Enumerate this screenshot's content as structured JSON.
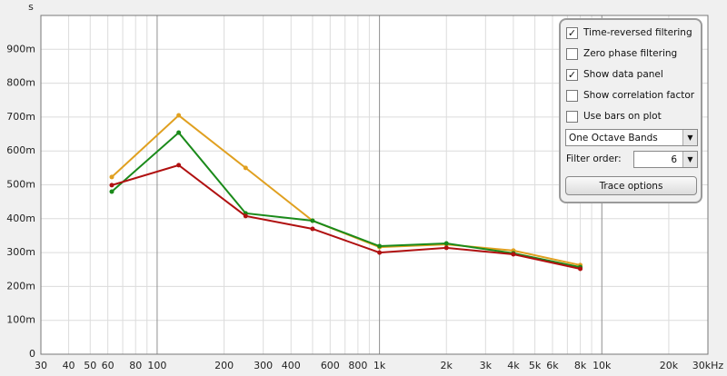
{
  "chart_data": {
    "type": "line",
    "y_label": "s",
    "x": [
      62.5,
      125,
      250,
      500,
      1000,
      2000,
      4000,
      8000
    ],
    "series": [
      {
        "color": "#e0a020",
        "values": [
          0.523,
          0.705,
          0.55,
          0.394,
          0.316,
          0.324,
          0.306,
          0.263
        ]
      },
      {
        "color": "#1a8a1a",
        "values": [
          0.48,
          0.654,
          0.416,
          0.394,
          0.319,
          0.327,
          0.298,
          0.257
        ]
      },
      {
        "color": "#b01010",
        "values": [
          0.499,
          0.558,
          0.408,
          0.37,
          0.3,
          0.314,
          0.295,
          0.252
        ]
      }
    ],
    "xlim": [
      30,
      30000
    ],
    "xscale": "log",
    "xticks": [
      30,
      40,
      50,
      60,
      80,
      100,
      200,
      300,
      400,
      600,
      800,
      {
        "value": 1000,
        "label": "1k"
      },
      {
        "value": 2000,
        "label": "2k"
      },
      {
        "value": 3000,
        "label": "3k"
      },
      {
        "value": 4000,
        "label": "4k"
      },
      {
        "value": 5000,
        "label": "5k"
      },
      {
        "value": 6000,
        "label": "6k"
      },
      {
        "value": 8000,
        "label": "8k"
      },
      {
        "value": 10000,
        "label": "10k"
      },
      {
        "value": 20000,
        "label": "20k"
      },
      {
        "value": 30000,
        "label": "30kHz"
      }
    ],
    "xminor": [
      70,
      90,
      500,
      700,
      900,
      7000,
      9000
    ],
    "ylim": [
      0,
      1
    ],
    "yticks": [
      0,
      {
        "value": 0.1,
        "label": "100m"
      },
      {
        "value": 0.2,
        "label": "200m"
      },
      {
        "value": 0.3,
        "label": "300m"
      },
      {
        "value": 0.4,
        "label": "400m"
      },
      {
        "value": 0.5,
        "label": "500m"
      },
      {
        "value": 0.6,
        "label": "600m"
      },
      {
        "value": 0.7,
        "label": "700m"
      },
      {
        "value": 0.8,
        "label": "800m"
      },
      {
        "value": 0.9,
        "label": "900m"
      }
    ],
    "grid": true
  },
  "panel": {
    "options": [
      {
        "label": "Time-reversed filtering",
        "checked": true
      },
      {
        "label": "Zero phase filtering",
        "checked": false
      },
      {
        "label": "Show data panel",
        "checked": true
      },
      {
        "label": "Show correlation factor",
        "checked": false
      },
      {
        "label": "Use bars on plot",
        "checked": false
      }
    ],
    "band_select": "One Octave Bands",
    "filter_order_label": "Filter order:",
    "filter_order": 6,
    "button": "Trace options"
  }
}
